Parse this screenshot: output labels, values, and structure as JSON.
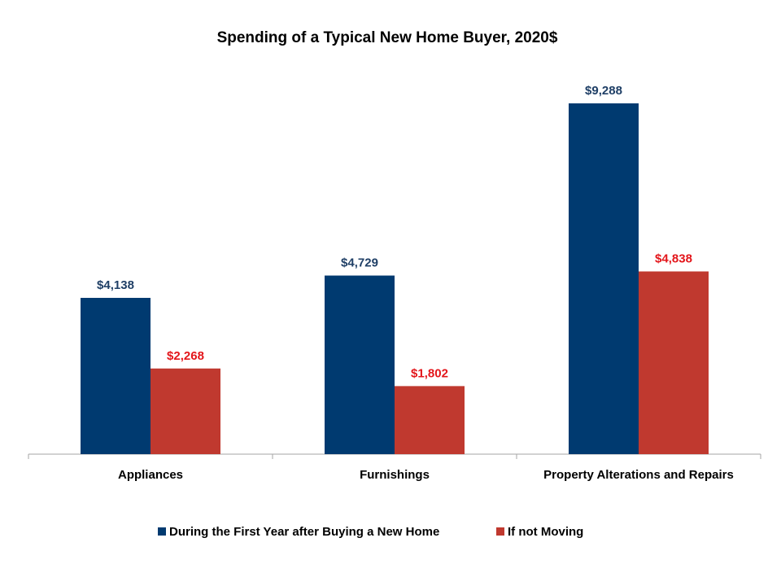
{
  "chart_data": {
    "type": "bar",
    "title": "Spending of a Typical New Home Buyer, 2020$",
    "categories": [
      "Appliances",
      "Furnishings",
      "Property Alterations and Repairs"
    ],
    "series": [
      {
        "name": "During the First Year after Buying a New Home",
        "color": "#003a70",
        "label_color": "#1f3f66",
        "values": [
          4138,
          4729,
          9288
        ],
        "labels": [
          "$4,138",
          "$4,729",
          "$9,288"
        ]
      },
      {
        "name": "If not Moving",
        "color": "#c0392f",
        "label_color": "#e3151a",
        "values": [
          2268,
          1802,
          4838
        ],
        "labels": [
          "$2,268",
          "$1,802",
          "$4,838"
        ]
      }
    ],
    "ylim": [
      0,
      10000
    ],
    "grid": false,
    "legend_position": "bottom"
  }
}
